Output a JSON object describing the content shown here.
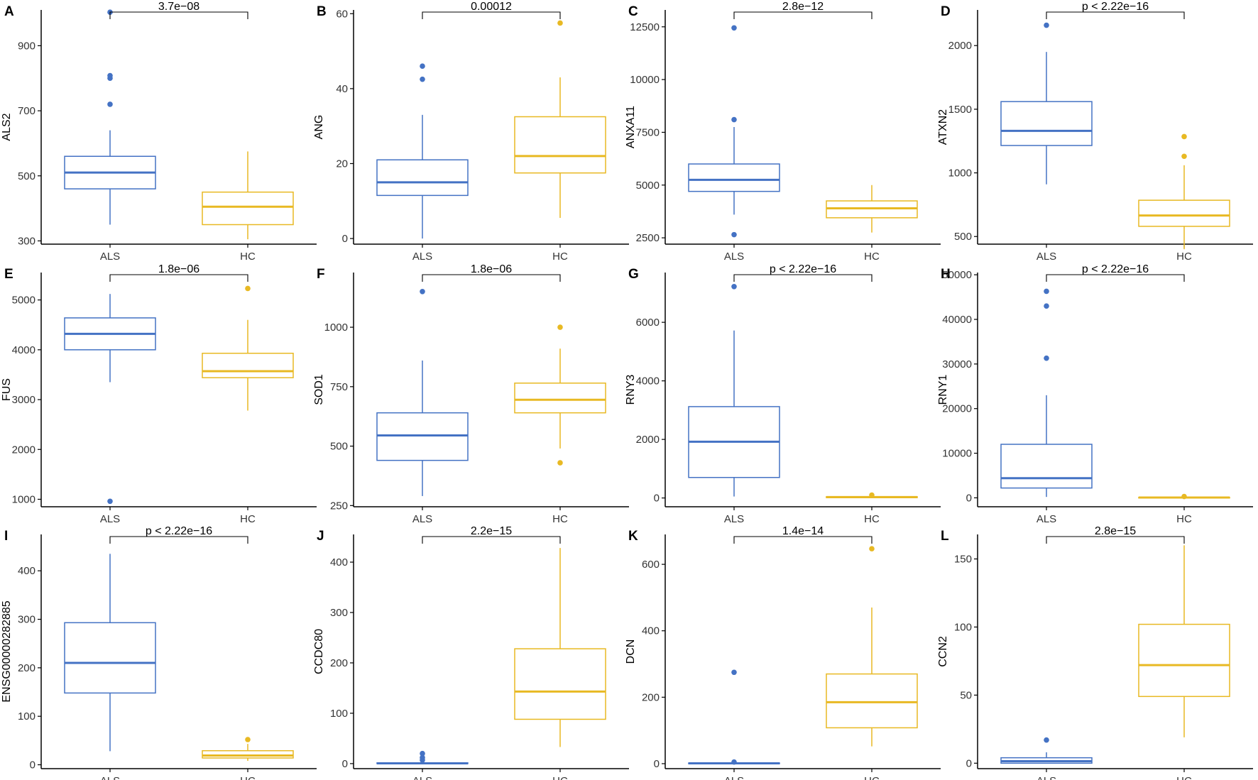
{
  "figure": {
    "colors": {
      "ALS": "#4472c4",
      "HC": "#e8b923",
      "axis": "#000000",
      "text": "#333333"
    },
    "chart_data": [
      {
        "type": "box",
        "panel": "A",
        "ylabel": "ALS2",
        "categories": [
          "ALS",
          "HC"
        ],
        "ylim": [
          290,
          1010
        ],
        "yticks": [
          300,
          500,
          700,
          900
        ],
        "pvalue": "3.7e−08",
        "series": [
          {
            "name": "ALS",
            "q1": 460,
            "median": 510,
            "q3": 560,
            "whisker_low": 350,
            "whisker_high": 640,
            "outliers": [
              720,
              800,
              808,
              1003
            ]
          },
          {
            "name": "HC",
            "q1": 350,
            "median": 405,
            "q3": 450,
            "whisker_low": 305,
            "whisker_high": 575,
            "outliers": []
          }
        ]
      },
      {
        "type": "box",
        "panel": "B",
        "ylabel": "ANG",
        "categories": [
          "ALS",
          "HC"
        ],
        "ylim": [
          -1.5,
          61
        ],
        "yticks": [
          0,
          20,
          40,
          60
        ],
        "pvalue": "0.00012",
        "series": [
          {
            "name": "ALS",
            "q1": 11.5,
            "median": 15,
            "q3": 21,
            "whisker_low": 0,
            "whisker_high": 33,
            "outliers": [
              42.5,
              46
            ]
          },
          {
            "name": "HC",
            "q1": 17.5,
            "median": 22,
            "q3": 32.5,
            "whisker_low": 5.5,
            "whisker_high": 43,
            "outliers": [
              57.5
            ]
          }
        ]
      },
      {
        "type": "box",
        "panel": "C",
        "ylabel": "ANXA11",
        "categories": [
          "ALS",
          "HC"
        ],
        "ylim": [
          2200,
          13300
        ],
        "yticks": [
          2500,
          5000,
          7500,
          10000,
          12500
        ],
        "pvalue": "2.8e−12",
        "series": [
          {
            "name": "ALS",
            "q1": 4700,
            "median": 5250,
            "q3": 6000,
            "whisker_low": 3600,
            "whisker_high": 7750,
            "outliers": [
              8100,
              2650,
              12450
            ]
          },
          {
            "name": "HC",
            "q1": 3450,
            "median": 3900,
            "q3": 4250,
            "whisker_low": 2750,
            "whisker_high": 5000,
            "outliers": []
          }
        ]
      },
      {
        "type": "box",
        "panel": "D",
        "ylabel": "ATXN2",
        "categories": [
          "ALS",
          "HC"
        ],
        "ylim": [
          440,
          2280
        ],
        "yticks": [
          500,
          1000,
          1500,
          2000
        ],
        "pvalue": "p < 2.22e−16",
        "series": [
          {
            "name": "ALS",
            "q1": 1215,
            "median": 1330,
            "q3": 1560,
            "whisker_low": 910,
            "whisker_high": 1950,
            "outliers": [
              2160
            ]
          },
          {
            "name": "HC",
            "q1": 580,
            "median": 665,
            "q3": 785,
            "whisker_low": 400,
            "whisker_high": 1060,
            "outliers": [
              1130,
              1285
            ]
          }
        ]
      },
      {
        "type": "box",
        "panel": "E",
        "ylabel": "FUS",
        "categories": [
          "ALS",
          "HC"
        ],
        "ylim": [
          850,
          5550
        ],
        "yticks": [
          1000,
          2000,
          3000,
          4000,
          5000
        ],
        "pvalue": "1.8e−06",
        "series": [
          {
            "name": "ALS",
            "q1": 4000,
            "median": 4320,
            "q3": 4640,
            "whisker_low": 3350,
            "whisker_high": 5120,
            "outliers": [
              960
            ]
          },
          {
            "name": "HC",
            "q1": 3440,
            "median": 3570,
            "q3": 3930,
            "whisker_low": 2780,
            "whisker_high": 4600,
            "outliers": [
              5230
            ]
          }
        ]
      },
      {
        "type": "box",
        "panel": "F",
        "ylabel": "SOD1",
        "categories": [
          "ALS",
          "HC"
        ],
        "ylim": [
          245,
          1230
        ],
        "yticks": [
          250,
          500,
          750,
          1000
        ],
        "pvalue": "1.8e−06",
        "series": [
          {
            "name": "ALS",
            "q1": 440,
            "median": 545,
            "q3": 640,
            "whisker_low": 290,
            "whisker_high": 860,
            "outliers": [
              1150
            ]
          },
          {
            "name": "HC",
            "q1": 640,
            "median": 695,
            "q3": 765,
            "whisker_low": 490,
            "whisker_high": 910,
            "outliers": [
              430,
              1000
            ]
          }
        ]
      },
      {
        "type": "box",
        "panel": "G",
        "ylabel": "RNY3",
        "categories": [
          "ALS",
          "HC"
        ],
        "ylim": [
          -300,
          7700
        ],
        "yticks": [
          0,
          2000,
          4000,
          6000
        ],
        "pvalue": "p < 2.22e−16",
        "series": [
          {
            "name": "ALS",
            "q1": 700,
            "median": 1920,
            "q3": 3120,
            "whisker_low": 50,
            "whisker_high": 5720,
            "outliers": [
              7220
            ]
          },
          {
            "name": "HC",
            "q1": 10,
            "median": 30,
            "q3": 45,
            "whisker_low": 0,
            "whisker_high": 90,
            "outliers": [
              100
            ]
          }
        ]
      },
      {
        "type": "box",
        "panel": "H",
        "ylabel": "RNY1",
        "categories": [
          "ALS",
          "HC"
        ],
        "ylim": [
          -2000,
          50500
        ],
        "yticks": [
          0,
          10000,
          20000,
          30000,
          40000,
          50000
        ],
        "pvalue": "p < 2.22e−16",
        "series": [
          {
            "name": "ALS",
            "q1": 2200,
            "median": 4400,
            "q3": 12000,
            "whisker_low": 200,
            "whisker_high": 23000,
            "outliers": [
              31300,
              43000,
              46300
            ]
          },
          {
            "name": "HC",
            "q1": 20,
            "median": 60,
            "q3": 120,
            "whisker_low": 0,
            "whisker_high": 250,
            "outliers": [
              300
            ]
          }
        ]
      },
      {
        "type": "box",
        "panel": "I",
        "ylabel": "ENSG00000282885",
        "categories": [
          "ALS",
          "HC"
        ],
        "ylim": [
          -8,
          475
        ],
        "yticks": [
          0,
          100,
          200,
          300,
          400
        ],
        "pvalue": "p < 2.22e−16",
        "series": [
          {
            "name": "ALS",
            "q1": 148,
            "median": 210,
            "q3": 293,
            "whisker_low": 28,
            "whisker_high": 435,
            "outliers": []
          },
          {
            "name": "HC",
            "q1": 14,
            "median": 19,
            "q3": 29,
            "whisker_low": 8,
            "whisker_high": 43,
            "outliers": [
              52
            ]
          }
        ]
      },
      {
        "type": "box",
        "panel": "J",
        "ylabel": "CCDC80",
        "categories": [
          "ALS",
          "HC"
        ],
        "ylim": [
          -10,
          455
        ],
        "yticks": [
          0,
          100,
          200,
          300,
          400
        ],
        "pvalue": "2.2e−15",
        "series": [
          {
            "name": "ALS",
            "q1": 0,
            "median": 0.5,
            "q3": 1.5,
            "whisker_low": 0,
            "whisker_high": 3,
            "outliers": [
              7,
              12,
              20
            ]
          },
          {
            "name": "HC",
            "q1": 88,
            "median": 143,
            "q3": 228,
            "whisker_low": 33,
            "whisker_high": 428,
            "outliers": []
          }
        ]
      },
      {
        "type": "box",
        "panel": "K",
        "ylabel": "DCN",
        "categories": [
          "ALS",
          "HC"
        ],
        "ylim": [
          -15,
          690
        ],
        "yticks": [
          0,
          200,
          400,
          600
        ],
        "pvalue": "1.4e−14",
        "series": [
          {
            "name": "ALS",
            "q1": 0,
            "median": 1,
            "q3": 2,
            "whisker_low": 0,
            "whisker_high": 3,
            "outliers": [
              5,
              275
            ]
          },
          {
            "name": "HC",
            "q1": 108,
            "median": 185,
            "q3": 270,
            "whisker_low": 52,
            "whisker_high": 470,
            "outliers": [
              647
            ]
          }
        ]
      },
      {
        "type": "box",
        "panel": "L",
        "ylabel": "CCN2",
        "categories": [
          "ALS",
          "HC"
        ],
        "ylim": [
          -4,
          168
        ],
        "yticks": [
          0,
          50,
          100,
          150
        ],
        "pvalue": "2.8e−15",
        "series": [
          {
            "name": "ALS",
            "q1": 0,
            "median": 1.5,
            "q3": 4,
            "whisker_low": 0,
            "whisker_high": 8,
            "outliers": [
              17
            ]
          },
          {
            "name": "HC",
            "q1": 49,
            "median": 72,
            "q3": 102,
            "whisker_low": 19,
            "whisker_high": 160,
            "outliers": []
          }
        ]
      }
    ]
  }
}
